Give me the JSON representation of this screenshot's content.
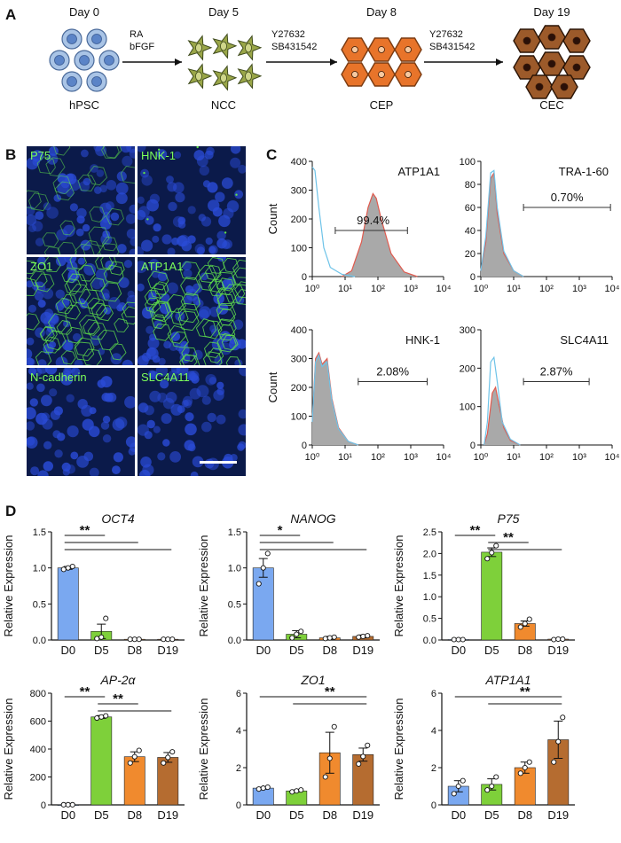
{
  "panels": {
    "a": "A",
    "b": "B",
    "c": "C",
    "d": "D"
  },
  "panel_a": {
    "stages": [
      {
        "day": "Day 0",
        "name": "hPSC"
      },
      {
        "day": "Day 5",
        "name": "NCC"
      },
      {
        "day": "Day 8",
        "name": "CEP"
      },
      {
        "day": "Day 19",
        "name": "CEC"
      }
    ],
    "arrows": [
      {
        "line1": "RA",
        "line2": "bFGF"
      },
      {
        "line1": "Y27632",
        "line2": "SB431542"
      },
      {
        "line1": "Y27632",
        "line2": "SB431542"
      }
    ]
  },
  "panel_b": {
    "tiles": [
      "P75",
      "HNK-1",
      "ZO1",
      "ATP1A1",
      "N-cadherin",
      "SLC4A11"
    ]
  },
  "chart_data": [
    {
      "type": "histogram",
      "marker": "ATP1A1",
      "gate_percent": "99.4%",
      "ylabel": "Count",
      "ylim": [
        0,
        400
      ],
      "yticks": [
        "0",
        "100",
        "200",
        "300",
        "400"
      ],
      "xticks": [
        "10⁰",
        "10¹",
        "10²",
        "10³",
        "10⁴"
      ],
      "x_scale": "log",
      "series": [
        {
          "name": "",
          "color": "#e05a4e"
        },
        {
          "name": "",
          "color": "#6ec3e8"
        }
      ]
    },
    {
      "type": "histogram",
      "marker": "TRA-1-60",
      "gate_percent": "0.70%",
      "ylabel": "",
      "ylim": [
        0,
        100
      ],
      "yticks": [
        "0",
        "20",
        "40",
        "60",
        "80",
        "100"
      ],
      "xticks": [
        "10⁰",
        "10¹",
        "10²",
        "10³",
        "10⁴"
      ],
      "x_scale": "log"
    },
    {
      "type": "histogram",
      "marker": "HNK-1",
      "gate_percent": "2.08%",
      "ylabel": "Count",
      "ylim": [
        0,
        400
      ],
      "yticks": [
        "0",
        "100",
        "200",
        "300",
        "400"
      ],
      "xticks": [
        "10⁰",
        "10¹",
        "10²",
        "10³",
        "10⁴"
      ],
      "x_scale": "log"
    },
    {
      "type": "histogram",
      "marker": "SLC4A11",
      "gate_percent": "2.87%",
      "ylabel": "",
      "ylim": [
        0,
        300
      ],
      "yticks": [
        "0",
        "100",
        "200",
        "300"
      ],
      "xticks": [
        "10⁰",
        "10¹",
        "10²",
        "10³",
        "10⁴"
      ],
      "x_scale": "log"
    },
    {
      "type": "bar",
      "title": "OCT4",
      "ylabel": "Relative Expression",
      "categories": [
        "D0",
        "D5",
        "D8",
        "D19"
      ],
      "values": [
        1.0,
        0.12,
        0.01,
        0.01
      ],
      "errors": [
        0.02,
        0.1,
        0.005,
        0.005
      ],
      "points": [
        [
          0.98,
          1.0,
          1.02
        ],
        [
          0.02,
          0.04,
          0.3
        ],
        [
          0.01,
          0.01,
          0.01
        ],
        [
          0.01,
          0.01,
          0.01
        ]
      ],
      "ylim": [
        0,
        1.5
      ],
      "yticks": [
        "0.0",
        "0.5",
        "1.0",
        "1.5"
      ],
      "significance": "**",
      "sig_pairs": [
        [
          0,
          1
        ],
        [
          0,
          2
        ],
        [
          0,
          3
        ]
      ]
    },
    {
      "type": "bar",
      "title": "NANOG",
      "ylabel": "Relative Expression",
      "categories": [
        "D0",
        "D5",
        "D8",
        "D19"
      ],
      "values": [
        1.0,
        0.08,
        0.03,
        0.05
      ],
      "errors": [
        0.13,
        0.05,
        0.02,
        0.02
      ],
      "points": [
        [
          0.78,
          1.0,
          1.2
        ],
        [
          0.03,
          0.08,
          0.12
        ],
        [
          0.02,
          0.03,
          0.04
        ],
        [
          0.04,
          0.05,
          0.06
        ]
      ],
      "ylim": [
        0,
        1.5
      ],
      "yticks": [
        "0.0",
        "0.5",
        "1.0",
        "1.5"
      ],
      "significance": "*",
      "sig_pairs": [
        [
          0,
          1
        ],
        [
          0,
          2
        ],
        [
          0,
          3
        ]
      ]
    },
    {
      "type": "bar",
      "title": "P75",
      "ylabel": "Relative Expression",
      "categories": [
        "D0",
        "D5",
        "D8",
        "D19"
      ],
      "values": [
        0.01,
        2.03,
        0.38,
        0.02
      ],
      "errors": [
        0.005,
        0.1,
        0.06,
        0.01
      ],
      "points": [
        [
          0.01,
          0.01,
          0.01
        ],
        [
          1.88,
          2.02,
          2.18
        ],
        [
          0.3,
          0.38,
          0.48
        ],
        [
          0.01,
          0.02,
          0.02
        ]
      ],
      "ylim": [
        0,
        2.5
      ],
      "yticks": [
        "0.0",
        "0.5",
        "1.0",
        "1.5",
        "2.0",
        "2.5"
      ],
      "significance": "**",
      "sig_pairs": [
        [
          0,
          1
        ],
        [
          1,
          2
        ],
        [
          1,
          3
        ]
      ]
    },
    {
      "type": "bar",
      "title": "AP-2α",
      "ylabel": "Relative Expression",
      "categories": [
        "D0",
        "D5",
        "D8",
        "D19"
      ],
      "values": [
        1,
        630,
        345,
        340
      ],
      "errors": [
        0.5,
        10,
        35,
        35
      ],
      "points": [
        [
          1,
          1,
          1
        ],
        [
          622,
          630,
          638
        ],
        [
          300,
          345,
          390
        ],
        [
          300,
          340,
          380
        ]
      ],
      "ylim": [
        0,
        800
      ],
      "yticks": [
        "0",
        "200",
        "400",
        "600",
        "800"
      ],
      "significance": "**",
      "sig_pairs": [
        [
          0,
          1
        ],
        [
          1,
          2
        ],
        [
          1,
          3
        ]
      ]
    },
    {
      "type": "bar",
      "title": "ZO1",
      "ylabel": "Relative Expression",
      "categories": [
        "D0",
        "D5",
        "D8",
        "D19"
      ],
      "values": [
        0.9,
        0.75,
        2.8,
        2.7
      ],
      "errors": [
        0.05,
        0.05,
        1.1,
        0.35
      ],
      "points": [
        [
          0.85,
          0.9,
          0.95
        ],
        [
          0.7,
          0.75,
          0.8
        ],
        [
          1.5,
          2.5,
          4.2
        ],
        [
          2.2,
          2.6,
          3.2
        ]
      ],
      "ylim": [
        0,
        6
      ],
      "yticks": [
        "0",
        "2",
        "4",
        "6"
      ],
      "significance": "**",
      "sig_pairs": [
        [
          0,
          3
        ],
        [
          1,
          3
        ]
      ]
    },
    {
      "type": "bar",
      "title": "ATP1A1",
      "ylabel": "Relative Expression",
      "categories": [
        "D0",
        "D5",
        "D8",
        "D19"
      ],
      "values": [
        1.0,
        1.1,
        2.0,
        3.5
      ],
      "errors": [
        0.3,
        0.3,
        0.3,
        1.0
      ],
      "points": [
        [
          0.6,
          1.0,
          1.3
        ],
        [
          0.8,
          1.0,
          1.5
        ],
        [
          1.7,
          2.0,
          2.3
        ],
        [
          2.3,
          3.4,
          4.7
        ]
      ],
      "ylim": [
        0,
        6
      ],
      "yticks": [
        "0",
        "2",
        "4",
        "6"
      ],
      "significance": "**",
      "sig_pairs": [
        [
          0,
          3
        ],
        [
          1,
          3
        ]
      ]
    }
  ],
  "bar_colors": [
    "#7aa8f0",
    "#7ed03a",
    "#f08a2e",
    "#b56c30"
  ]
}
